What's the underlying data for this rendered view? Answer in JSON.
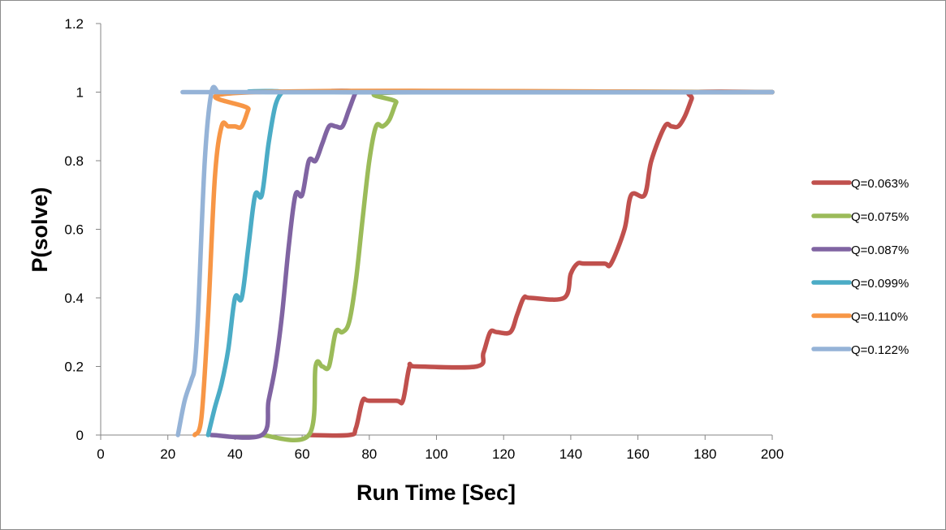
{
  "chart_data": {
    "type": "line",
    "xlabel": "Run Time [Sec]",
    "ylabel": "P(solve)",
    "xlim": [
      0,
      200
    ],
    "ylim": [
      0,
      1.2
    ],
    "xticks": [
      0,
      20,
      40,
      60,
      80,
      100,
      120,
      140,
      160,
      180,
      200
    ],
    "yticks": [
      0,
      0.2,
      0.4,
      0.6,
      0.8,
      1,
      1.2
    ],
    "grid": false,
    "legend_position": "right",
    "series": [
      {
        "name": "Q=0.063%",
        "color": "#c0504d",
        "x": [
          62,
          74,
          76,
          78,
          80,
          88,
          90,
          92,
          94,
          112,
          114,
          116,
          118,
          122,
          124,
          126,
          128,
          138,
          140,
          142,
          144,
          150,
          152,
          156,
          158,
          162,
          164,
          168,
          170,
          172,
          174,
          176,
          177,
          200
        ],
        "y": [
          0,
          0,
          0.02,
          0.1,
          0.1,
          0.1,
          0.1,
          0.2,
          0.2,
          0.2,
          0.24,
          0.3,
          0.3,
          0.3,
          0.35,
          0.4,
          0.4,
          0.4,
          0.47,
          0.5,
          0.5,
          0.5,
          0.5,
          0.6,
          0.7,
          0.7,
          0.8,
          0.9,
          0.9,
          0.9,
          0.93,
          0.98,
          1,
          1
        ]
      },
      {
        "name": "Q=0.075%",
        "color": "#9bbb59",
        "x": [
          48,
          62,
          64,
          66,
          68,
          70,
          72,
          74,
          76,
          78,
          80,
          82,
          84,
          86,
          88,
          90,
          200
        ],
        "y": [
          0,
          0,
          0.2,
          0.2,
          0.2,
          0.3,
          0.3,
          0.33,
          0.45,
          0.63,
          0.8,
          0.9,
          0.9,
          0.92,
          0.97,
          1,
          1
        ]
      },
      {
        "name": "Q=0.087%",
        "color": "#8064a2",
        "x": [
          33,
          48,
          50,
          52,
          54,
          56,
          58,
          60,
          62,
          64,
          66,
          68,
          70,
          72,
          74,
          76,
          77,
          200
        ],
        "y": [
          0,
          0,
          0.1,
          0.2,
          0.35,
          0.55,
          0.7,
          0.7,
          0.8,
          0.8,
          0.85,
          0.9,
          0.9,
          0.9,
          0.95,
          1,
          1,
          1
        ]
      },
      {
        "name": "Q=0.099%",
        "color": "#4bacc6",
        "x": [
          32,
          34,
          36,
          38,
          40,
          42,
          44,
          46,
          48,
          50,
          52,
          54,
          55,
          200
        ],
        "y": [
          0,
          0.08,
          0.15,
          0.25,
          0.4,
          0.4,
          0.55,
          0.7,
          0.7,
          0.85,
          0.96,
          1,
          1,
          1
        ]
      },
      {
        "name": "Q=0.110%",
        "color": "#f79646",
        "x": [
          28,
          30,
          32,
          34,
          36,
          38,
          40,
          42,
          44,
          46,
          200
        ],
        "y": [
          0,
          0.05,
          0.35,
          0.75,
          0.9,
          0.9,
          0.9,
          0.9,
          0.95,
          1,
          1
        ]
      },
      {
        "name": "Q=0.122%",
        "color": "#95b3d7",
        "x": [
          23,
          25,
          27,
          28,
          29,
          31,
          33,
          35,
          37,
          200
        ],
        "y": [
          0,
          0.1,
          0.16,
          0.2,
          0.35,
          0.8,
          1,
          1,
          1,
          1
        ]
      }
    ]
  }
}
